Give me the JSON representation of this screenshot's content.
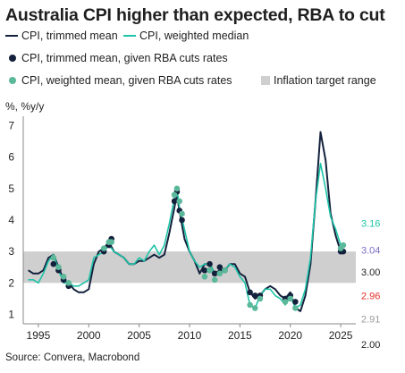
{
  "title": "Australia CPI higher than expected, RBA to cut",
  "unit_label": "%, %y/y",
  "source": "Source: Convera, Macrobond",
  "legend": [
    {
      "label": "CPI, trimmed mean",
      "kind": "line",
      "color": "#14213d"
    },
    {
      "label": "CPI, weighted median",
      "kind": "line",
      "color": "#1ec4a8"
    },
    {
      "label": "CPI, trimmed mean, given RBA cuts rates",
      "kind": "dot",
      "color": "#14213d"
    },
    {
      "label": "CPI, weighted mean, given RBA cuts rates",
      "kind": "dot",
      "color": "#5cb89a"
    },
    {
      "label": "Inflation target range",
      "kind": "box",
      "color": "#cfcfcf"
    }
  ],
  "chart_data": {
    "type": "line",
    "xlim": [
      1993.5,
      2026.5
    ],
    "ylim": [
      0.7,
      7.3
    ],
    "x_ticks": [
      1995,
      2000,
      2005,
      2010,
      2015,
      2020,
      2025
    ],
    "y_ticks": [
      1,
      2,
      3,
      4,
      5,
      6,
      7
    ],
    "target_band": [
      2,
      3
    ],
    "series": [
      {
        "name": "CPI, trimmed mean",
        "color": "#14213d",
        "points": [
          [
            1994,
            2.4
          ],
          [
            1994.5,
            2.3
          ],
          [
            1995,
            2.3
          ],
          [
            1995.5,
            2.4
          ],
          [
            1996,
            2.8
          ],
          [
            1996.5,
            2.9
          ],
          [
            1997,
            2.5
          ],
          [
            1997.5,
            2.1
          ],
          [
            1998,
            2.0
          ],
          [
            1998.5,
            1.8
          ],
          [
            1999,
            1.7
          ],
          [
            1999.5,
            1.7
          ],
          [
            2000,
            1.8
          ],
          [
            2000.5,
            2.6
          ],
          [
            2001,
            3.0
          ],
          [
            2001.5,
            3.1
          ],
          [
            2002,
            3.3
          ],
          [
            2002.5,
            3.0
          ],
          [
            2003,
            2.9
          ],
          [
            2003.5,
            2.8
          ],
          [
            2004,
            2.6
          ],
          [
            2004.5,
            2.6
          ],
          [
            2005,
            2.7
          ],
          [
            2005.5,
            2.7
          ],
          [
            2006,
            2.8
          ],
          [
            2006.5,
            2.9
          ],
          [
            2007,
            2.8
          ],
          [
            2007.5,
            2.9
          ],
          [
            2008,
            3.6
          ],
          [
            2008.5,
            4.4
          ],
          [
            2008.75,
            4.8
          ],
          [
            2009,
            4.3
          ],
          [
            2009.5,
            3.4
          ],
          [
            2010,
            3.0
          ],
          [
            2010.5,
            2.7
          ],
          [
            2011,
            2.3
          ],
          [
            2011.5,
            2.6
          ],
          [
            2012,
            2.6
          ],
          [
            2012.5,
            2.3
          ],
          [
            2013,
            2.4
          ],
          [
            2013.5,
            2.4
          ],
          [
            2014,
            2.6
          ],
          [
            2014.5,
            2.6
          ],
          [
            2015,
            2.3
          ],
          [
            2015.5,
            2.2
          ],
          [
            2016,
            1.7
          ],
          [
            2016.5,
            1.5
          ],
          [
            2017,
            1.6
          ],
          [
            2017.5,
            1.8
          ],
          [
            2018,
            1.9
          ],
          [
            2018.5,
            1.8
          ],
          [
            2019,
            1.6
          ],
          [
            2019.5,
            1.5
          ],
          [
            2020,
            1.7
          ],
          [
            2020.5,
            1.2
          ],
          [
            2021,
            1.1
          ],
          [
            2021.5,
            1.6
          ],
          [
            2022,
            2.6
          ],
          [
            2022.5,
            4.6
          ],
          [
            2023,
            6.8
          ],
          [
            2023.5,
            5.9
          ],
          [
            2024,
            4.2
          ],
          [
            2024.5,
            3.5
          ],
          [
            2025,
            3.0
          ]
        ]
      },
      {
        "name": "CPI, weighted median",
        "color": "#1ec4a8",
        "points": [
          [
            1994,
            2.1
          ],
          [
            1994.5,
            2.1
          ],
          [
            1995,
            2.0
          ],
          [
            1995.5,
            2.3
          ],
          [
            1996,
            2.7
          ],
          [
            1996.5,
            2.9
          ],
          [
            1997,
            2.4
          ],
          [
            1997.5,
            2.0
          ],
          [
            1998,
            2.0
          ],
          [
            1998.5,
            1.9
          ],
          [
            1999,
            1.9
          ],
          [
            1999.5,
            2.0
          ],
          [
            2000,
            2.1
          ],
          [
            2000.5,
            2.8
          ],
          [
            2001,
            2.9
          ],
          [
            2001.5,
            3.0
          ],
          [
            2002,
            3.2
          ],
          [
            2002.5,
            3.0
          ],
          [
            2003,
            2.9
          ],
          [
            2003.5,
            2.8
          ],
          [
            2004,
            2.6
          ],
          [
            2004.5,
            2.6
          ],
          [
            2005,
            2.8
          ],
          [
            2005.5,
            2.7
          ],
          [
            2006,
            3.0
          ],
          [
            2006.5,
            3.2
          ],
          [
            2007,
            2.9
          ],
          [
            2007.5,
            3.2
          ],
          [
            2008,
            3.9
          ],
          [
            2008.5,
            4.7
          ],
          [
            2008.75,
            5.0
          ],
          [
            2009,
            4.4
          ],
          [
            2009.5,
            3.7
          ],
          [
            2010,
            3.0
          ],
          [
            2010.5,
            2.7
          ],
          [
            2011,
            2.5
          ],
          [
            2011.5,
            2.6
          ],
          [
            2012,
            2.6
          ],
          [
            2012.5,
            2.3
          ],
          [
            2013,
            2.3
          ],
          [
            2013.5,
            2.4
          ],
          [
            2014,
            2.6
          ],
          [
            2014.5,
            2.5
          ],
          [
            2015,
            2.2
          ],
          [
            2015.5,
            2.0
          ],
          [
            2016,
            1.3
          ],
          [
            2016.5,
            1.2
          ],
          [
            2017,
            1.6
          ],
          [
            2017.5,
            1.8
          ],
          [
            2018,
            1.8
          ],
          [
            2018.5,
            1.6
          ],
          [
            2019,
            1.5
          ],
          [
            2019.5,
            1.3
          ],
          [
            2020,
            1.6
          ],
          [
            2020.5,
            1.2
          ],
          [
            2021,
            1.3
          ],
          [
            2021.5,
            1.8
          ],
          [
            2022,
            2.8
          ],
          [
            2022.5,
            4.6
          ],
          [
            2023,
            5.8
          ],
          [
            2023.5,
            5.0
          ],
          [
            2024,
            4.1
          ],
          [
            2024.5,
            3.7
          ],
          [
            2025,
            3.2
          ]
        ]
      }
    ],
    "dot_series": [
      {
        "name": "CPI, trimmed mean, given RBA cuts rates",
        "color": "#14213d",
        "points": [
          [
            1996.5,
            2.6
          ],
          [
            1997,
            2.4
          ],
          [
            1997.5,
            2.1
          ],
          [
            1998,
            1.9
          ],
          [
            2001.5,
            3.0
          ],
          [
            2002,
            3.2
          ],
          [
            2002.25,
            3.4
          ],
          [
            2008.5,
            4.6
          ],
          [
            2008.75,
            4.9
          ],
          [
            2009,
            4.3
          ],
          [
            2009.25,
            4.0
          ],
          [
            2011.5,
            2.4
          ],
          [
            2012,
            2.6
          ],
          [
            2012.5,
            2.3
          ],
          [
            2013,
            2.5
          ],
          [
            2013.5,
            2.4
          ],
          [
            2016,
            1.7
          ],
          [
            2016.5,
            1.6
          ],
          [
            2017,
            1.6
          ],
          [
            2019.5,
            1.5
          ],
          [
            2020,
            1.6
          ],
          [
            2020.5,
            1.4
          ],
          [
            2025,
            3.0
          ],
          [
            2025.25,
            3.0
          ]
        ]
      },
      {
        "name": "CPI, weighted mean, given RBA cuts rates",
        "color": "#5cb89a",
        "points": [
          [
            1996.5,
            2.8
          ],
          [
            1997,
            2.5
          ],
          [
            1997.5,
            2.2
          ],
          [
            1998,
            2.0
          ],
          [
            2001.5,
            3.1
          ],
          [
            2002,
            3.3
          ],
          [
            2002.25,
            3.3
          ],
          [
            2008.5,
            4.8
          ],
          [
            2008.75,
            5.0
          ],
          [
            2009,
            4.6
          ],
          [
            2009.25,
            4.2
          ],
          [
            2011.5,
            2.2
          ],
          [
            2012,
            2.4
          ],
          [
            2012.5,
            2.1
          ],
          [
            2013,
            2.3
          ],
          [
            2013.5,
            2.4
          ],
          [
            2016,
            1.3
          ],
          [
            2016.5,
            1.2
          ],
          [
            2017,
            1.5
          ],
          [
            2019.5,
            1.4
          ],
          [
            2020,
            1.5
          ],
          [
            2020.5,
            1.2
          ],
          [
            2025,
            3.1
          ],
          [
            2025.25,
            3.2
          ]
        ]
      }
    ],
    "end_labels": [
      {
        "text": "3.16",
        "y": 3.9,
        "color": "#1ec4a8"
      },
      {
        "text": "3.04",
        "y": 3.05,
        "color": "#7a6fc4"
      },
      {
        "text": "3.00",
        "y": 2.35,
        "color": "#1f1f1f"
      },
      {
        "text": "2.96",
        "y": 1.6,
        "color": "#e0312b"
      },
      {
        "text": "2.91",
        "y": 0.85,
        "color": "#9a9a9a"
      },
      {
        "text": "2.00",
        "y": 0.05,
        "color": "#1f1f1f"
      }
    ]
  }
}
